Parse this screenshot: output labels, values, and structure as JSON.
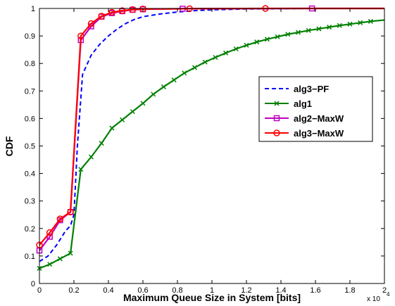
{
  "chart_data": {
    "type": "line",
    "title": "",
    "xlabel": "Maximum Queue Size in System [bits]",
    "ylabel": "CDF",
    "x_exponent_base": "x 10",
    "x_exponent_power": "4",
    "xlim": [
      0,
      2
    ],
    "ylim": [
      0,
      1
    ],
    "x_ticks": [
      0,
      0.2,
      0.4,
      0.6,
      0.8,
      1,
      1.2,
      1.4,
      1.6,
      1.8,
      2
    ],
    "x_tick_labels": [
      "0",
      "0.2",
      "0.4",
      "0.6",
      "0.8",
      "1",
      "1.2",
      "1.4",
      "1.6",
      "1.8",
      "2"
    ],
    "y_ticks": [
      0,
      0.1,
      0.2,
      0.3,
      0.4,
      0.5,
      0.6,
      0.7,
      0.8,
      0.9,
      1
    ],
    "y_tick_labels": [
      "0",
      "0.1",
      "0.2",
      "0.3",
      "0.4",
      "0.5",
      "0.6",
      "0.7",
      "0.8",
      "0.9",
      "1"
    ],
    "grid": false,
    "legend_position": "right",
    "series": [
      {
        "name": "alg3−PF",
        "color": "#0000ff",
        "style": "dashed",
        "marker": "none",
        "x": [
          0,
          0.05,
          0.1,
          0.15,
          0.18,
          0.2,
          0.22,
          0.25,
          0.3,
          0.35,
          0.4,
          0.45,
          0.5,
          0.55,
          0.6,
          0.7,
          0.8,
          0.9,
          1.0,
          1.2,
          1.4,
          1.6,
          1.8,
          2.0
        ],
        "y": [
          0.08,
          0.1,
          0.14,
          0.19,
          0.21,
          0.25,
          0.5,
          0.76,
          0.83,
          0.87,
          0.9,
          0.925,
          0.945,
          0.96,
          0.97,
          0.98,
          0.987,
          0.992,
          0.995,
          0.998,
          0.999,
          1.0,
          1.0,
          1.0
        ]
      },
      {
        "name": "alg1",
        "color": "#008000",
        "style": "solid",
        "marker": "x",
        "x": [
          0,
          0.06,
          0.12,
          0.18,
          0.24,
          0.3,
          0.36,
          0.42,
          0.48,
          0.54,
          0.6,
          0.66,
          0.72,
          0.78,
          0.84,
          0.9,
          0.96,
          1.02,
          1.08,
          1.14,
          1.2,
          1.26,
          1.32,
          1.38,
          1.44,
          1.5,
          1.56,
          1.62,
          1.68,
          1.74,
          1.8,
          1.86,
          1.92,
          2.0
        ],
        "y": [
          0.055,
          0.07,
          0.09,
          0.11,
          0.415,
          0.46,
          0.51,
          0.565,
          0.595,
          0.625,
          0.655,
          0.688,
          0.715,
          0.74,
          0.765,
          0.785,
          0.805,
          0.822,
          0.838,
          0.853,
          0.866,
          0.878,
          0.888,
          0.897,
          0.906,
          0.913,
          0.92,
          0.926,
          0.932,
          0.938,
          0.943,
          0.948,
          0.953,
          0.958
        ]
      },
      {
        "name": "alg2−MaxW",
        "color": "#bf00bf",
        "style": "solid",
        "marker": "square",
        "x": [
          0,
          0.06,
          0.12,
          0.18,
          0.24,
          0.3,
          0.36,
          0.42,
          0.48,
          0.54,
          0.6,
          0.83,
          1.58,
          2.0
        ],
        "y": [
          0.12,
          0.17,
          0.23,
          0.26,
          0.885,
          0.935,
          0.97,
          0.983,
          0.99,
          0.995,
          0.997,
          0.999,
          1.0,
          1.0
        ]
      },
      {
        "name": "alg3−MaxW",
        "color": "#ff0000",
        "style": "solid",
        "marker": "circle",
        "x": [
          0,
          0.06,
          0.12,
          0.18,
          0.24,
          0.3,
          0.36,
          0.42,
          0.48,
          0.54,
          0.6,
          0.87,
          1.31,
          2.0
        ],
        "y": [
          0.14,
          0.185,
          0.235,
          0.26,
          0.9,
          0.945,
          0.972,
          0.986,
          0.992,
          0.996,
          0.998,
          0.999,
          1.0,
          1.0
        ]
      }
    ]
  }
}
